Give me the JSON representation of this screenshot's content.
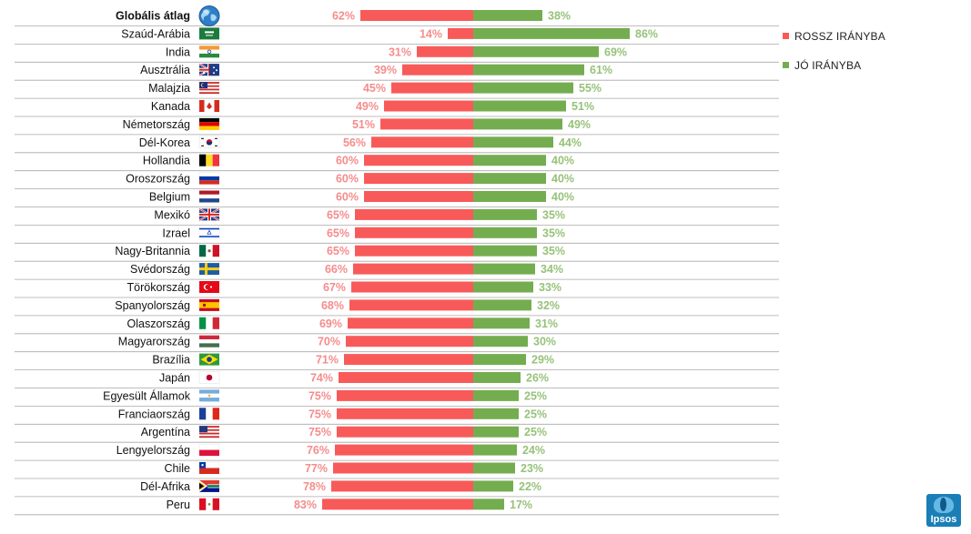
{
  "chart_data": {
    "type": "bar",
    "orientation": "horizontal-diverging",
    "categories": [
      "Globális átlag",
      "Szaúd-Arábia",
      "India",
      "Ausztrália",
      "Malajzia",
      "Kanada",
      "Németország",
      "Dél-Korea",
      "Hollandia",
      "Oroszország",
      "Belgium",
      "Mexikó",
      "Izrael",
      "Nagy-Britannia",
      "Svédország",
      "Törökország",
      "Spanyolország",
      "Olaszország",
      "Magyarország",
      "Brazília",
      "Japán",
      "Egyesült Államok",
      "Franciaország",
      "Argentína",
      "Lengyelország",
      "Chile",
      "Dél-Afrika",
      "Peru"
    ],
    "series": [
      {
        "name": "ROSSZ IRÁNYBA",
        "color": "#f85a5a",
        "label_color": "#f58c8c",
        "values": [
          62,
          14,
          31,
          39,
          45,
          49,
          51,
          56,
          60,
          60,
          60,
          65,
          65,
          65,
          66,
          67,
          68,
          69,
          70,
          71,
          74,
          75,
          75,
          75,
          76,
          77,
          78,
          83
        ]
      },
      {
        "name": "JÓ IRÁNYBA",
        "color": "#74ad4f",
        "label_color": "#97c27a",
        "values": [
          38,
          86,
          69,
          61,
          55,
          51,
          49,
          44,
          40,
          40,
          40,
          35,
          35,
          35,
          34,
          33,
          32,
          31,
          30,
          29,
          26,
          25,
          25,
          25,
          24,
          23,
          22,
          17
        ]
      }
    ],
    "value_suffix": "%",
    "xlim": [
      0,
      100
    ],
    "grid": false,
    "legend_position": "right",
    "title": "",
    "xlabel": "",
    "ylabel": "",
    "flag_icons": [
      "globe-icon",
      "flag-saudi-arabia-icon",
      "flag-india-icon",
      "flag-australia-icon",
      "flag-malaysia-icon",
      "flag-canada-icon",
      "flag-germany-icon",
      "flag-south-korea-icon",
      "flag-belgium-icon",
      "flag-russia-icon",
      "flag-netherlands-icon",
      "flag-uk-icon",
      "flag-israel-icon",
      "flag-mexico-icon",
      "flag-sweden-icon",
      "flag-turkey-icon",
      "flag-spain-icon",
      "flag-italy-icon",
      "flag-hungary-icon",
      "flag-brazil-icon",
      "flag-japan-icon",
      "flag-argentina-icon",
      "flag-france-icon",
      "flag-usa-icon",
      "flag-poland-icon",
      "flag-chile-icon",
      "flag-south-africa-icon",
      "flag-peru-icon"
    ]
  },
  "legend": [
    {
      "label": "ROSSZ IRÁNYBA",
      "color": "#f85a5a"
    },
    {
      "label": "JÓ IRÁNYBA",
      "color": "#74ad4f"
    }
  ],
  "brand": {
    "logo_text": "Ipsos",
    "color": "#1b7eb6"
  }
}
